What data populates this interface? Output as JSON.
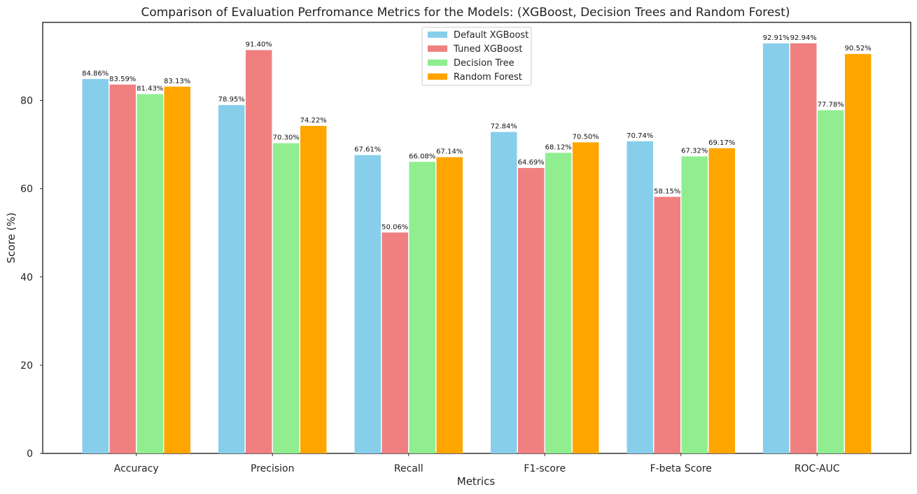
{
  "chart_data": {
    "type": "bar",
    "title": "Comparison of Evaluation Perfromance Metrics for the Models: (XGBoost, Decision Trees and Random Forest)",
    "xlabel": "Metrics",
    "ylabel": "Score (%)",
    "ylim": [
      0,
      98
    ],
    "yticks": [
      0,
      20,
      40,
      60,
      80
    ],
    "categories": [
      "Accuracy",
      "Precision",
      "Recall",
      "F1-score",
      "F-beta Score",
      "ROC-AUC"
    ],
    "series": [
      {
        "name": "Default XGBoost",
        "color": "#87ceeb",
        "values": [
          84.86,
          78.95,
          67.61,
          72.84,
          70.74,
          92.91
        ],
        "labels": [
          "84.86%",
          "78.95%",
          "67.61%",
          "72.84%",
          "70.74%",
          "92.91%"
        ]
      },
      {
        "name": "Tuned XGBoost",
        "color": "#f08080",
        "values": [
          83.59,
          91.4,
          50.06,
          64.69,
          58.15,
          92.94
        ],
        "labels": [
          "83.59%",
          "91.40%",
          "50.06%",
          "64.69%",
          "58.15%",
          "92.94%"
        ]
      },
      {
        "name": "Decision Tree",
        "color": "#90ee90",
        "values": [
          81.43,
          70.3,
          66.08,
          68.12,
          67.32,
          77.78
        ],
        "labels": [
          "81.43%",
          "70.30%",
          "66.08%",
          "68.12%",
          "67.32%",
          "77.78%"
        ]
      },
      {
        "name": "Random Forest",
        "color": "#ffa500",
        "values": [
          83.13,
          74.22,
          67.14,
          70.5,
          69.17,
          90.52
        ],
        "labels": [
          "83.13%",
          "74.22%",
          "67.14%",
          "70.50%",
          "69.17%",
          "90.52%"
        ]
      }
    ],
    "grid": false,
    "legend_position": "top-center"
  }
}
